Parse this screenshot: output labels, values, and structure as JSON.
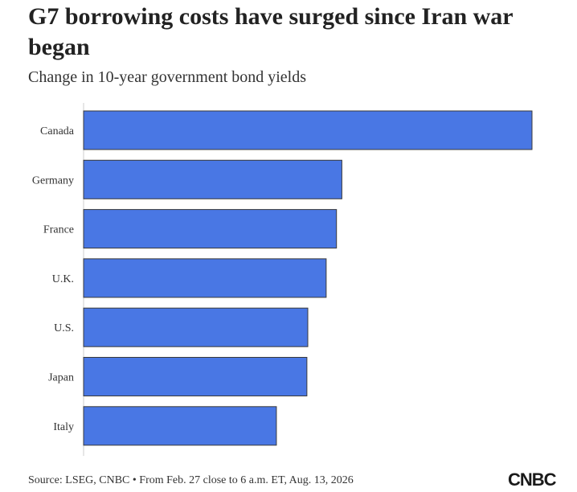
{
  "title": "G7 borrowing costs have surged since Iran war began",
  "subtitle": "Change in 10-year government bond yields",
  "source": "Source: LSEG, CNBC • From Feb. 27 close to 6 a.m. ET, Aug. 13, 2026",
  "logo": "CNBC",
  "colors": {
    "bar": "#4977e4",
    "bar_stroke": "#3a3a3a",
    "axis": "#cccccc"
  },
  "chart_data": {
    "type": "bar",
    "orientation": "horizontal",
    "title": "G7 borrowing costs have surged since Iran war began",
    "subtitle": "Change in 10-year government bond yields",
    "categories": [
      "Canada",
      "Germany",
      "France",
      "U.K.",
      "U.S.",
      "Japan",
      "Italy"
    ],
    "values": [
      100,
      57.6,
      56.4,
      54.1,
      50.0,
      49.8,
      43.0
    ],
    "xlim": [
      0,
      100
    ],
    "grid": false,
    "legend": "none"
  }
}
